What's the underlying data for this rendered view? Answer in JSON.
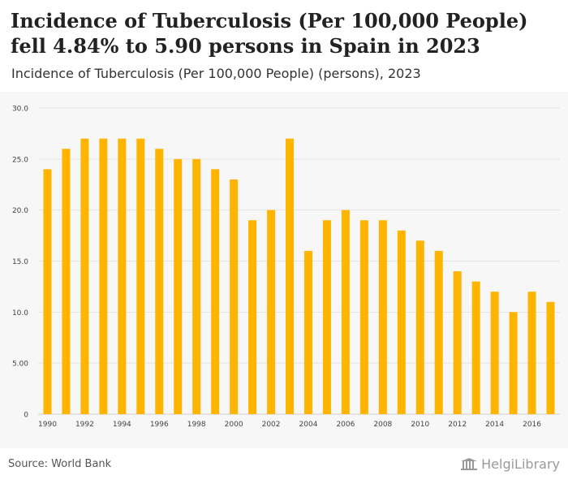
{
  "header": {
    "title": "Incidence of Tuberculosis (Per 100,000 People) fell 4.84% to 5.90 persons in Spain in 2023",
    "subtitle": "Incidence of Tuberculosis (Per 100,000 People) (persons), 2023"
  },
  "footer": {
    "source": "Source: World Bank",
    "brand": "HelgiLibrary"
  },
  "colors": {
    "bar": "#FFB400",
    "grid": "#e3e3e3",
    "background": "#f7f7f7"
  },
  "chart_data": {
    "type": "bar",
    "categories": [
      "1990",
      "1991",
      "1992",
      "1993",
      "1994",
      "1995",
      "1996",
      "1997",
      "1998",
      "1999",
      "2000",
      "2001",
      "2002",
      "2003",
      "2004",
      "2005",
      "2006",
      "2007",
      "2008",
      "2009",
      "2010",
      "2011",
      "2012",
      "2013",
      "2014",
      "2015",
      "2016",
      "2017"
    ],
    "values": [
      24,
      26,
      27,
      27,
      27,
      27,
      26,
      25,
      25,
      24,
      23,
      19,
      20,
      27,
      16,
      19,
      20,
      19,
      19,
      18,
      17,
      16,
      14,
      13,
      12,
      10,
      12,
      11
    ],
    "x_tick_labels": [
      "1990",
      "1992",
      "1994",
      "1996",
      "1998",
      "2000",
      "2002",
      "2004",
      "2006",
      "2008",
      "2010",
      "2012",
      "2014",
      "2016"
    ],
    "y_ticks": [
      0,
      5,
      10,
      15,
      20,
      25,
      30
    ],
    "y_tick_labels": [
      "0",
      "5.00",
      "10.0",
      "15.0",
      "20.0",
      "25.0",
      "30.0"
    ],
    "ylim": [
      0,
      30
    ],
    "grid": true,
    "legend": "none",
    "title": "",
    "xlabel": "",
    "ylabel": ""
  }
}
